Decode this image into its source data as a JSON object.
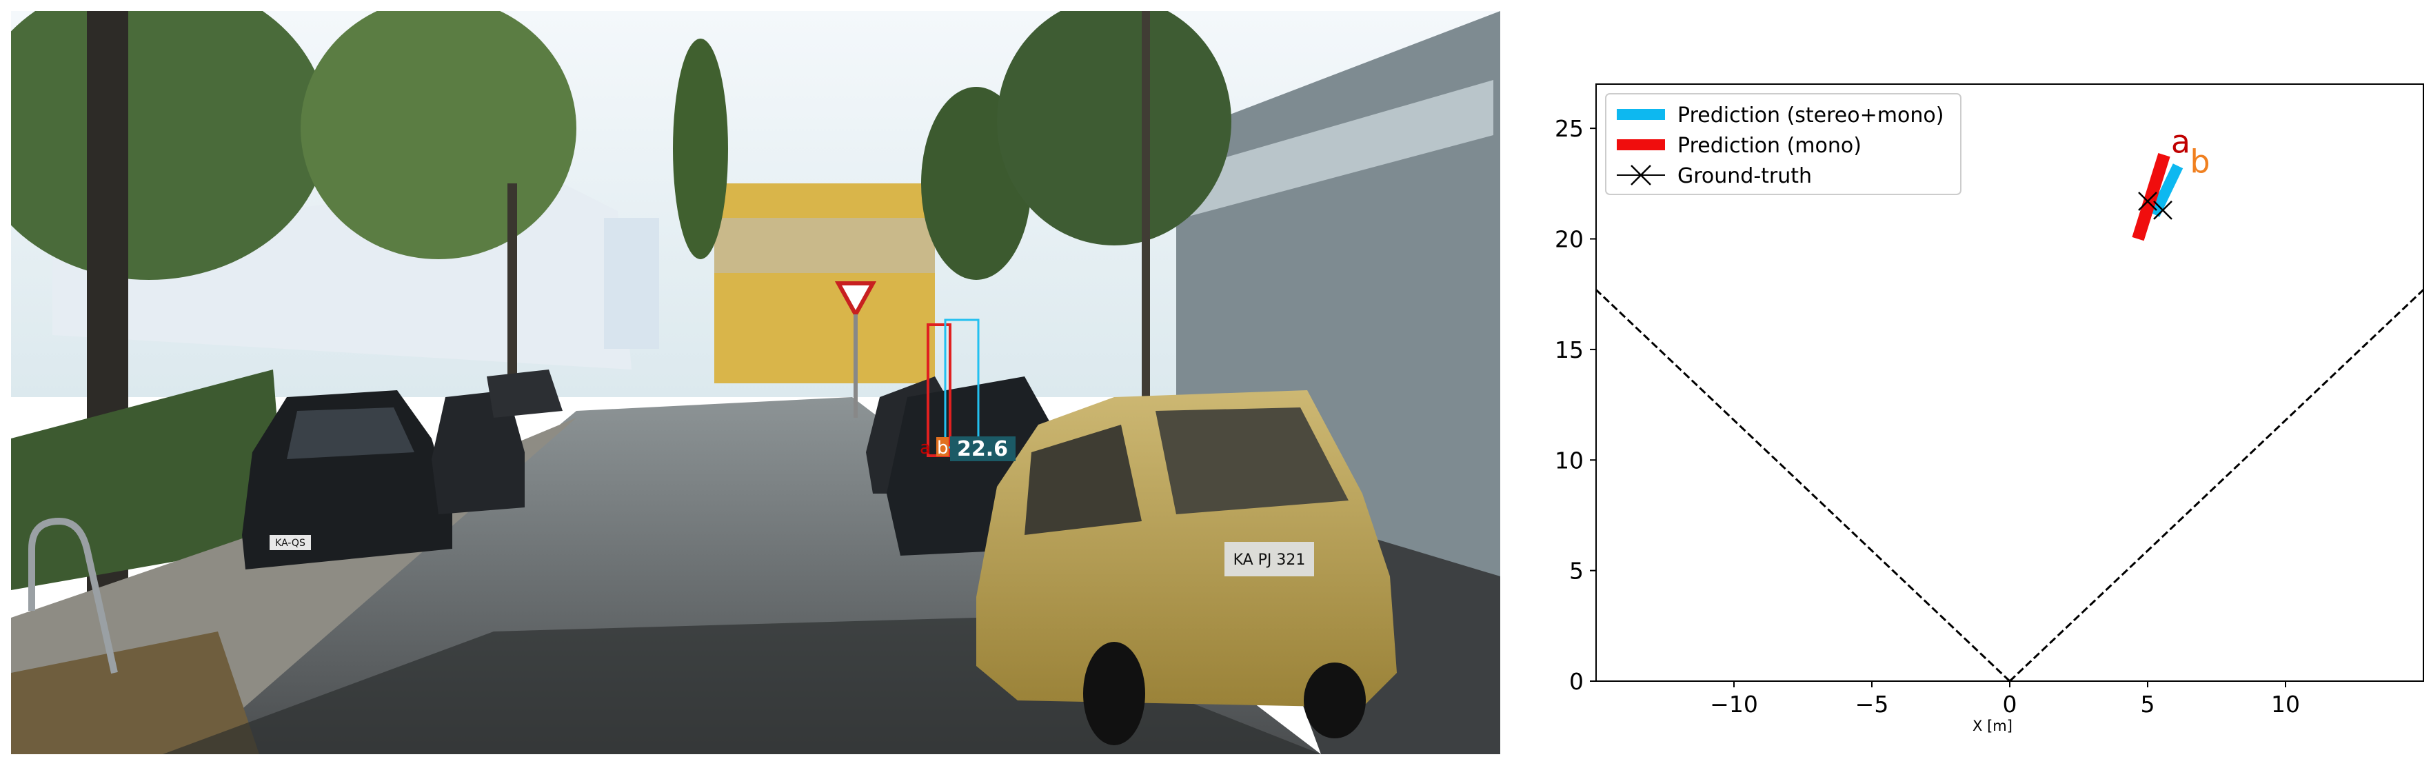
{
  "photo": {
    "sign_text": "KA-QS",
    "plate_text": "KA PJ 321",
    "labels": {
      "a": "a",
      "b": "b",
      "distance": "22.6"
    }
  },
  "colors": {
    "stereo_mono": "#0db8f0",
    "mono": "#f00d0d",
    "ground_truth": "#000000",
    "label_a": "#c00000",
    "label_b": "#f08020"
  },
  "chart_data": {
    "type": "scatter",
    "title": "",
    "xlabel": "X [m]",
    "ylabel": "",
    "xlim": [
      -15,
      15
    ],
    "ylim": [
      0,
      27
    ],
    "xticks": [
      -10,
      -5,
      0,
      5,
      10
    ],
    "yticks": [
      0,
      5,
      10,
      15,
      20,
      25
    ],
    "xtick_labels": [
      "−10",
      "−5",
      "0",
      "5",
      "10"
    ],
    "ytick_labels": [
      "0",
      "5",
      "10",
      "15",
      "20",
      "25"
    ],
    "grid": false,
    "legend_position": "top-left",
    "legend": [
      {
        "label": "Prediction (stereo+mono)",
        "style": "thick-line",
        "color": "#0db8f0"
      },
      {
        "label": "Prediction (mono)",
        "style": "thick-line",
        "color": "#f00d0d"
      },
      {
        "label": "Ground-truth",
        "style": "x-marker",
        "color": "#000000"
      }
    ],
    "field_of_view": {
      "style": "dashed",
      "origin": [
        0,
        0
      ],
      "left_end": [
        -15,
        17.7
      ],
      "right_end": [
        15,
        17.7
      ]
    },
    "series": [
      {
        "name": "Prediction (stereo+mono)",
        "type": "segment",
        "from": [
          5.25,
          21.1
        ],
        "to": [
          6.1,
          23.3
        ],
        "color": "#0db8f0",
        "label": "b"
      },
      {
        "name": "Prediction (mono)",
        "type": "segment",
        "from": [
          4.65,
          20.0
        ],
        "to": [
          5.6,
          23.8
        ],
        "color": "#f00d0d",
        "label": "a"
      },
      {
        "name": "Ground-truth",
        "type": "points",
        "points": [
          [
            5.0,
            21.7
          ],
          [
            5.55,
            21.3
          ]
        ],
        "color": "#000000"
      }
    ],
    "point_labels": [
      {
        "text": "a",
        "x": 6.2,
        "y": 23.9,
        "color": "#c00000"
      },
      {
        "text": "b",
        "x": 6.9,
        "y": 23.0,
        "color": "#f08020"
      }
    ]
  }
}
